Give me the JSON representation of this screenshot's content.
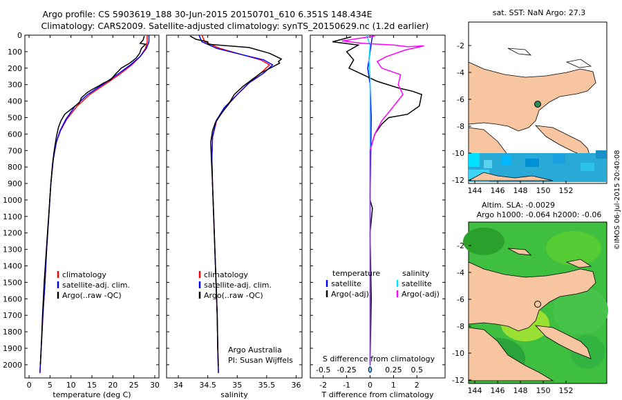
{
  "figure": {
    "title_line1": "Argo profile: CS 5903619_188 30-Jun-2015 20150701_610 6.351S 148.434E",
    "title_line2": "Climatology: CARS2009. Satellite-adjusted climatology: synTS_20150629.nc (1.2d earlier)",
    "side_label": "©IMOS 06-Jul-2015 20:40:08"
  },
  "colors": {
    "climatology": "#ff0000",
    "satellite": "#0000ff",
    "argo": "#000000",
    "sat_cyan": "#00e5ff",
    "argo_magenta": "#ff00ff",
    "land": "#f7c59f",
    "sea_map1": "#ffffff",
    "sla_green": "#3fbf3f",
    "marker_green": "#2e8b57"
  },
  "chart_data": [
    {
      "type": "line",
      "name": "temperature",
      "xlabel": "temperature (deg C)",
      "ylabel": "",
      "xlim": [
        -1,
        31
      ],
      "ylim": [
        2080,
        0
      ],
      "xticks": [
        0,
        5,
        10,
        15,
        20,
        25,
        30
      ],
      "yticks": [
        0,
        100,
        200,
        300,
        400,
        500,
        600,
        700,
        800,
        900,
        1000,
        1100,
        1200,
        1300,
        1400,
        1500,
        1600,
        1700,
        1800,
        1900,
        2000
      ],
      "legend": [
        "climatology",
        "satellite-adj. clim.",
        "Argo(..raw -QC)"
      ],
      "series": [
        {
          "name": "climatology",
          "color": "climatology",
          "points": [
            [
              28.2,
              0
            ],
            [
              28.2,
              40
            ],
            [
              27.8,
              80
            ],
            [
              26.5,
              130
            ],
            [
              24.5,
              180
            ],
            [
              21.5,
              240
            ],
            [
              18,
              300
            ],
            [
              14.5,
              360
            ],
            [
              11.5,
              430
            ],
            [
              9,
              510
            ],
            [
              7.5,
              580
            ],
            [
              6.5,
              650
            ],
            [
              5.8,
              750
            ],
            [
              5.2,
              900
            ],
            [
              4.7,
              1100
            ],
            [
              4.2,
              1300
            ],
            [
              3.8,
              1500
            ],
            [
              3.3,
              1700
            ],
            [
              2.9,
              1900
            ],
            [
              2.6,
              2050
            ]
          ]
        },
        {
          "name": "satellite-adj. clim.",
          "color": "satellite",
          "points": [
            [
              28.6,
              0
            ],
            [
              28.6,
              40
            ],
            [
              28,
              80
            ],
            [
              26.5,
              130
            ],
            [
              24.2,
              180
            ],
            [
              21,
              240
            ],
            [
              17.5,
              300
            ],
            [
              14,
              360
            ],
            [
              11,
              430
            ],
            [
              8.8,
              510
            ],
            [
              7.4,
              580
            ],
            [
              6.5,
              650
            ],
            [
              5.8,
              750
            ],
            [
              5.2,
              900
            ],
            [
              4.7,
              1100
            ],
            [
              4.2,
              1300
            ],
            [
              3.8,
              1500
            ],
            [
              3.3,
              1700
            ],
            [
              2.9,
              1900
            ],
            [
              2.6,
              2050
            ]
          ]
        },
        {
          "name": "Argo(..raw -QC)",
          "color": "argo",
          "points": [
            [
              27.5,
              5
            ],
            [
              27.2,
              30
            ],
            [
              26.5,
              50
            ],
            [
              27.8,
              55
            ],
            [
              26.8,
              80
            ],
            [
              26.4,
              110
            ],
            [
              25.5,
              140
            ],
            [
              24,
              170
            ],
            [
              22,
              200
            ],
            [
              20.5,
              240
            ],
            [
              19.5,
              270
            ],
            [
              17.8,
              290
            ],
            [
              16.5,
              310
            ],
            [
              15,
              330
            ],
            [
              13.8,
              350
            ],
            [
              12.5,
              380
            ],
            [
              12,
              410
            ],
            [
              10,
              450
            ],
            [
              8.5,
              480
            ],
            [
              7.6,
              520
            ],
            [
              7,
              560
            ],
            [
              6.5,
              620
            ],
            [
              6,
              700
            ],
            [
              5.6,
              780
            ],
            [
              5.2,
              900
            ],
            [
              4.8,
              1050
            ],
            [
              4.4,
              1200
            ],
            [
              4,
              1350
            ],
            [
              3.6,
              1500
            ],
            [
              3.2,
              1700
            ],
            [
              2.9,
              1900
            ],
            [
              2.7,
              2000
            ]
          ]
        }
      ]
    },
    {
      "type": "line",
      "name": "salinity",
      "xlabel": "salinity",
      "ylabel": "",
      "xlim": [
        33.8,
        36.1
      ],
      "ylim": [
        2080,
        0
      ],
      "xticks": [
        34,
        34.5,
        35,
        35.5,
        36
      ],
      "legend": [
        "climatology",
        "satellite-adj. clim.",
        "Argo(..raw -QC)"
      ],
      "annotation": [
        "Argo Australia",
        "PI: Susan Wijffels"
      ],
      "series": [
        {
          "name": "climatology",
          "color": "climatology",
          "points": [
            [
              34.4,
              0
            ],
            [
              34.45,
              40
            ],
            [
              34.7,
              80
            ],
            [
              35.1,
              120
            ],
            [
              35.4,
              150
            ],
            [
              35.55,
              180
            ],
            [
              35.4,
              230
            ],
            [
              35.2,
              290
            ],
            [
              35,
              360
            ],
            [
              34.8,
              440
            ],
            [
              34.65,
              520
            ],
            [
              34.58,
              620
            ],
            [
              34.57,
              750
            ],
            [
              34.58,
              900
            ],
            [
              34.6,
              1100
            ],
            [
              34.62,
              1300
            ],
            [
              34.64,
              1500
            ],
            [
              34.66,
              1700
            ],
            [
              34.67,
              1900
            ],
            [
              34.68,
              2050
            ]
          ]
        },
        {
          "name": "satellite-adj. clim.",
          "color": "satellite",
          "points": [
            [
              34.35,
              0
            ],
            [
              34.4,
              40
            ],
            [
              34.65,
              80
            ],
            [
              35.1,
              120
            ],
            [
              35.45,
              150
            ],
            [
              35.6,
              180
            ],
            [
              35.45,
              230
            ],
            [
              35.2,
              290
            ],
            [
              35,
              360
            ],
            [
              34.78,
              440
            ],
            [
              34.64,
              520
            ],
            [
              34.58,
              620
            ],
            [
              34.57,
              750
            ],
            [
              34.58,
              900
            ],
            [
              34.6,
              1100
            ],
            [
              34.62,
              1300
            ],
            [
              34.64,
              1500
            ],
            [
              34.66,
              1700
            ],
            [
              34.67,
              1900
            ],
            [
              34.68,
              2050
            ]
          ]
        },
        {
          "name": "Argo(..raw -QC)",
          "color": "argo",
          "points": [
            [
              34.2,
              5
            ],
            [
              34.3,
              25
            ],
            [
              34.5,
              40
            ],
            [
              34.5,
              55
            ],
            [
              35.2,
              75
            ],
            [
              35.55,
              110
            ],
            [
              35.75,
              145
            ],
            [
              35.7,
              160
            ],
            [
              35.72,
              170
            ],
            [
              35.4,
              230
            ],
            [
              35.25,
              270
            ],
            [
              35.1,
              310
            ],
            [
              34.95,
              360
            ],
            [
              34.85,
              420
            ],
            [
              34.72,
              480
            ],
            [
              34.63,
              530
            ],
            [
              34.58,
              580
            ],
            [
              34.55,
              650
            ],
            [
              34.56,
              750
            ],
            [
              34.58,
              900
            ],
            [
              34.6,
              1100
            ],
            [
              34.62,
              1300
            ],
            [
              34.64,
              1500
            ],
            [
              34.66,
              1700
            ],
            [
              34.67,
              1900
            ],
            [
              34.68,
              2010
            ]
          ]
        }
      ]
    },
    {
      "type": "line",
      "name": "difference",
      "xlabel": "T difference from climatology",
      "top_axis_label": "S difference from climatology",
      "xlim": [
        -2.55,
        3.2
      ],
      "ylim": [
        2080,
        0
      ],
      "xticks": [
        -2,
        -1,
        0,
        1,
        2
      ],
      "top_ticks": [
        "-0.5",
        "-0.25",
        "0",
        "0.25",
        "0.5"
      ],
      "legend_titles": [
        "temperature",
        "salinity"
      ],
      "legend": [
        "satellite",
        "Argo(-adj)",
        "satellite",
        "Argo(-adj)"
      ],
      "series": [
        {
          "name": "T satellite",
          "color": "satellite",
          "points": [
            [
              0.1,
              0
            ],
            [
              0,
              100
            ],
            [
              -0.1,
              200
            ],
            [
              0,
              300
            ],
            [
              0.05,
              500
            ],
            [
              0,
              1000
            ],
            [
              0,
              2050
            ]
          ]
        },
        {
          "name": "T Argo(-adj)",
          "color": "argo",
          "points": [
            [
              -0.8,
              10
            ],
            [
              -1.6,
              40
            ],
            [
              -0.5,
              60
            ],
            [
              -1,
              100
            ],
            [
              -0.7,
              150
            ],
            [
              -0.9,
              200
            ],
            [
              -0.3,
              240
            ],
            [
              0.3,
              280
            ],
            [
              1.2,
              320
            ],
            [
              1.8,
              340
            ],
            [
              2.2,
              360
            ],
            [
              2.1,
              430
            ],
            [
              1.6,
              480
            ],
            [
              0.8,
              500
            ],
            [
              0.5,
              540
            ],
            [
              0.2,
              600
            ],
            [
              0,
              700
            ],
            [
              0,
              1000
            ],
            [
              0.1,
              1050
            ],
            [
              0,
              1200
            ],
            [
              0.05,
              1600
            ],
            [
              0,
              2000
            ]
          ]
        },
        {
          "name": "S satellite",
          "color": "sat_cyan",
          "points": [
            [
              -0.15,
              0
            ],
            [
              0,
              60
            ],
            [
              -0.05,
              150
            ],
            [
              0,
              250
            ],
            [
              0,
              2050
            ]
          ]
        },
        {
          "name": "S Argo(-adj)",
          "color": "argo_magenta",
          "points": [
            [
              0.2,
              5
            ],
            [
              -0.5,
              20
            ],
            [
              -1.2,
              35
            ],
            [
              -0.3,
              50
            ],
            [
              1,
              60
            ],
            [
              1.6,
              70
            ],
            [
              2.3,
              65
            ],
            [
              1.5,
              90
            ],
            [
              0.7,
              130
            ],
            [
              0.3,
              160
            ],
            [
              0.5,
              200
            ],
            [
              1.3,
              240
            ],
            [
              1.2,
              300
            ],
            [
              1.4,
              360
            ],
            [
              0.9,
              450
            ],
            [
              0.5,
              520
            ],
            [
              0.2,
              600
            ],
            [
              0,
              700
            ],
            [
              0,
              2000
            ]
          ]
        }
      ]
    }
  ],
  "maps": {
    "sst": {
      "title": "sat. SST: NaN Argo: 27.3",
      "xticks": [
        "144",
        "146",
        "148",
        "150",
        "152"
      ],
      "yticks": [
        "-2",
        "-4",
        "-6",
        "-8",
        "-10",
        "-12"
      ]
    },
    "sla": {
      "title1": "Altim. SLA: -0.0029",
      "title2": "Argo h1000: -0.064 h2000: -0.06",
      "xticks": [
        "144",
        "146",
        "148",
        "150",
        "152"
      ],
      "yticks": [
        "-2",
        "-4",
        "-6",
        "-8",
        "-10",
        "-12"
      ]
    }
  }
}
